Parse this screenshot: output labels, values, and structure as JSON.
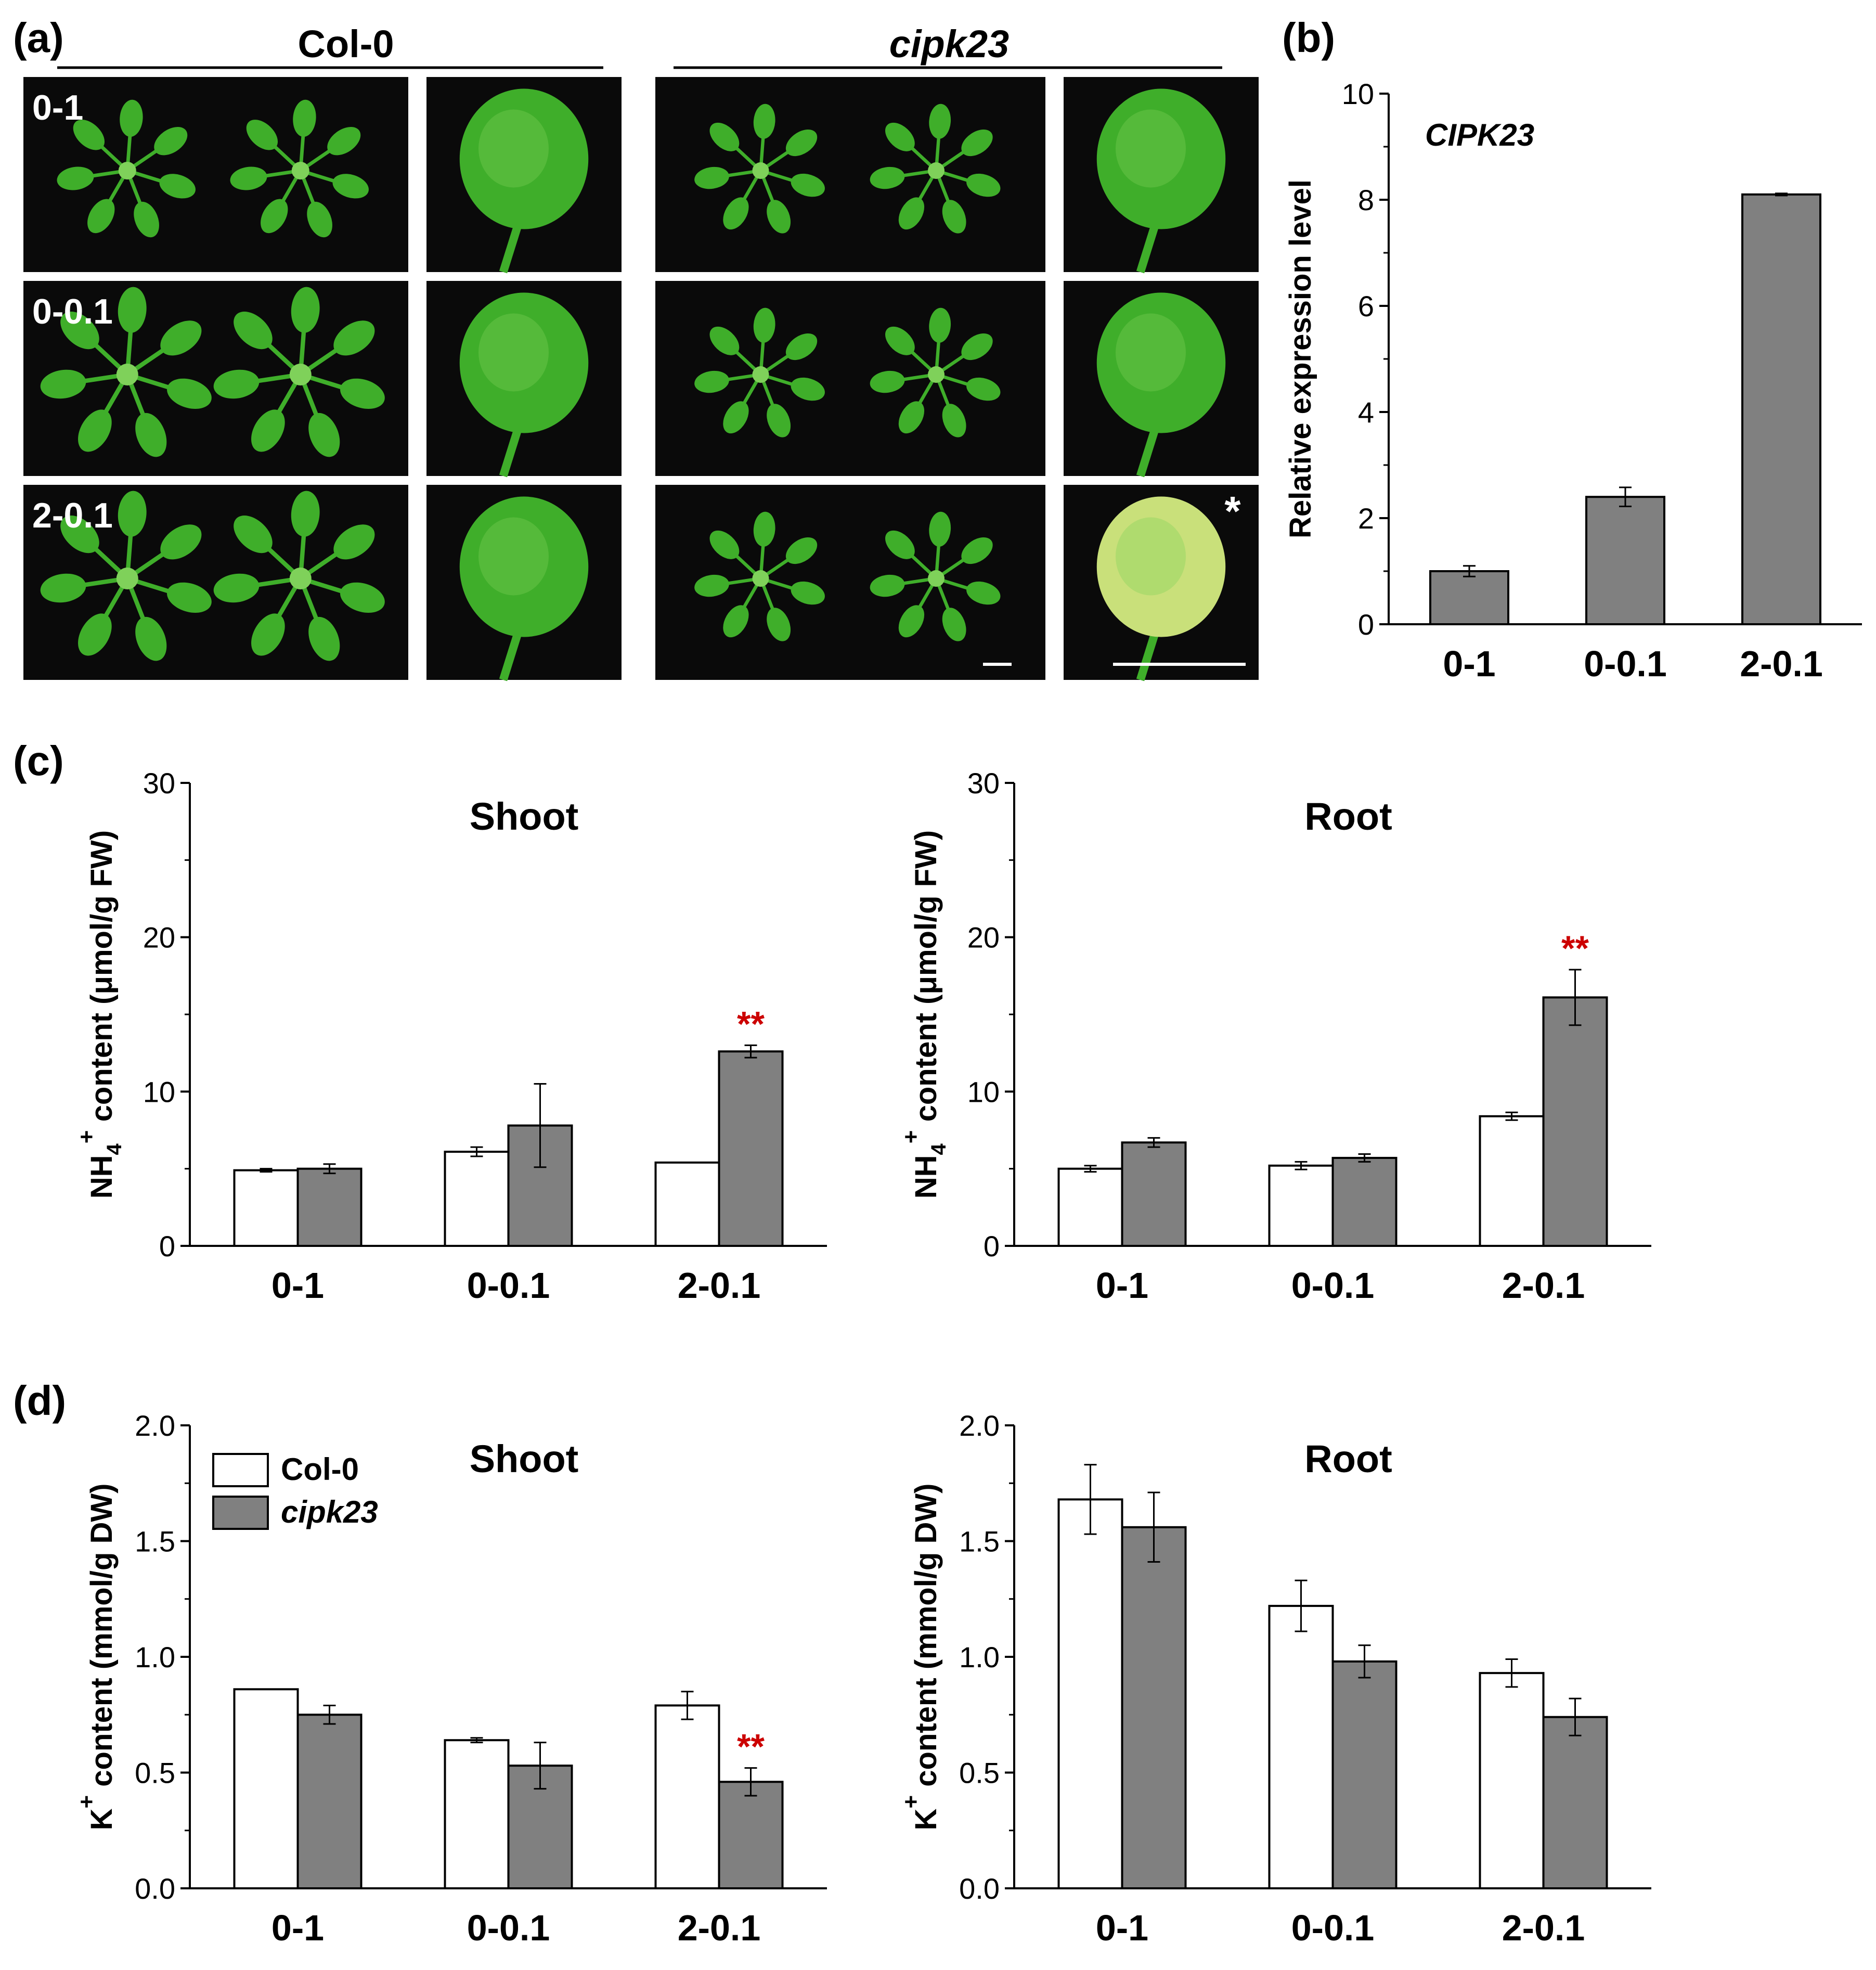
{
  "panel_labels": {
    "a": "(a)",
    "b": "(b)",
    "c": "(c)",
    "d": "(d)"
  },
  "panel_a": {
    "genotypes": [
      "Col-0",
      "cipk23"
    ],
    "rows": [
      "0-1",
      "0-0.1",
      "2-0.1"
    ],
    "asterisk": "*",
    "colors": {
      "background": "#0a0a0a",
      "leaf": "#3fae2a",
      "leaf_light": "#7fd15a",
      "chlorotic": "#c9e07a"
    }
  },
  "chart_data": [
    {
      "id": "b",
      "type": "bar",
      "title": "CIPK23",
      "categories": [
        "0-1",
        "0-0.1",
        "2-0.1"
      ],
      "series": [
        {
          "values": [
            1.0,
            2.4,
            8.1
          ],
          "errors": [
            0.1,
            0.18,
            0.02
          ],
          "color": "#808080"
        }
      ],
      "ylabel": "Relative expression level",
      "ylim": [
        0,
        10
      ],
      "yticks": [
        "0",
        "2",
        "4",
        "6",
        "8",
        "10"
      ]
    },
    {
      "id": "c-shoot",
      "type": "bar",
      "title": "Shoot",
      "categories": [
        "0-1",
        "0-0.1",
        "2-0.1"
      ],
      "series": [
        {
          "name": "Col-0",
          "values": [
            4.9,
            6.1,
            5.4
          ],
          "errors": [
            0.1,
            0.3,
            0.0
          ],
          "color": "#ffffff"
        },
        {
          "name": "cipk23",
          "values": [
            5.0,
            7.8,
            12.6
          ],
          "errors": [
            0.3,
            2.7,
            0.4
          ],
          "color": "#808080"
        }
      ],
      "significance": [
        {
          "category": "2-0.1",
          "series": "cipk23",
          "text": "**"
        }
      ],
      "ylabel": {
        "base": "NH",
        "sub": "4",
        "sup": "+",
        "rest": " content (μmol/g FW)"
      },
      "ylim": [
        0,
        30
      ],
      "yticks": [
        "0",
        "10",
        "20",
        "30"
      ]
    },
    {
      "id": "c-root",
      "type": "bar",
      "title": "Root",
      "categories": [
        "0-1",
        "0-0.1",
        "2-0.1"
      ],
      "series": [
        {
          "name": "Col-0",
          "values": [
            5.0,
            5.2,
            8.4
          ],
          "errors": [
            0.2,
            0.25,
            0.25
          ],
          "color": "#ffffff"
        },
        {
          "name": "cipk23",
          "values": [
            6.7,
            5.7,
            16.1
          ],
          "errors": [
            0.3,
            0.25,
            1.8
          ],
          "color": "#808080"
        }
      ],
      "significance": [
        {
          "category": "2-0.1",
          "series": "cipk23",
          "text": "**"
        }
      ],
      "ylabel": {
        "base": "NH",
        "sub": "4",
        "sup": "+",
        "rest": " content (μmol/g FW)"
      },
      "ylim": [
        0,
        30
      ],
      "yticks": [
        "0",
        "10",
        "20",
        "30"
      ]
    },
    {
      "id": "d-shoot",
      "type": "bar",
      "title": "Shoot",
      "categories": [
        "0-1",
        "0-0.1",
        "2-0.1"
      ],
      "series": [
        {
          "name": "Col-0",
          "values": [
            0.86,
            0.64,
            0.79
          ],
          "errors": [
            0.0,
            0.01,
            0.06
          ],
          "color": "#ffffff"
        },
        {
          "name": "cipk23",
          "values": [
            0.75,
            0.53,
            0.46
          ],
          "errors": [
            0.04,
            0.1,
            0.06
          ],
          "color": "#808080"
        }
      ],
      "significance": [
        {
          "category": "2-0.1",
          "series": "cipk23",
          "text": "**"
        }
      ],
      "legend": {
        "position": "top-left",
        "entries": [
          "Col-0",
          "cipk23"
        ]
      },
      "ylabel": {
        "base": "K",
        "sub": "",
        "sup": "+",
        "rest": " content (mmol/g DW)"
      },
      "ylim": [
        0,
        2.0
      ],
      "yticks": [
        "0.0",
        "0.5",
        "1.0",
        "1.5",
        "2.0"
      ]
    },
    {
      "id": "d-root",
      "type": "bar",
      "title": "Root",
      "categories": [
        "0-1",
        "0-0.1",
        "2-0.1"
      ],
      "series": [
        {
          "name": "Col-0",
          "values": [
            1.68,
            1.22,
            0.93
          ],
          "errors": [
            0.15,
            0.11,
            0.06
          ],
          "color": "#ffffff"
        },
        {
          "name": "cipk23",
          "values": [
            1.56,
            0.98,
            0.74
          ],
          "errors": [
            0.15,
            0.07,
            0.08
          ],
          "color": "#808080"
        }
      ],
      "significance": [],
      "ylabel": {
        "base": "K",
        "sub": "",
        "sup": "+",
        "rest": " content (mmol/g DW)"
      },
      "ylim": [
        0,
        2.0
      ],
      "yticks": [
        "0.0",
        "0.5",
        "1.0",
        "1.5",
        "2.0"
      ]
    }
  ],
  "colors": {
    "significance": "#cc0000",
    "axis": "#000000"
  }
}
